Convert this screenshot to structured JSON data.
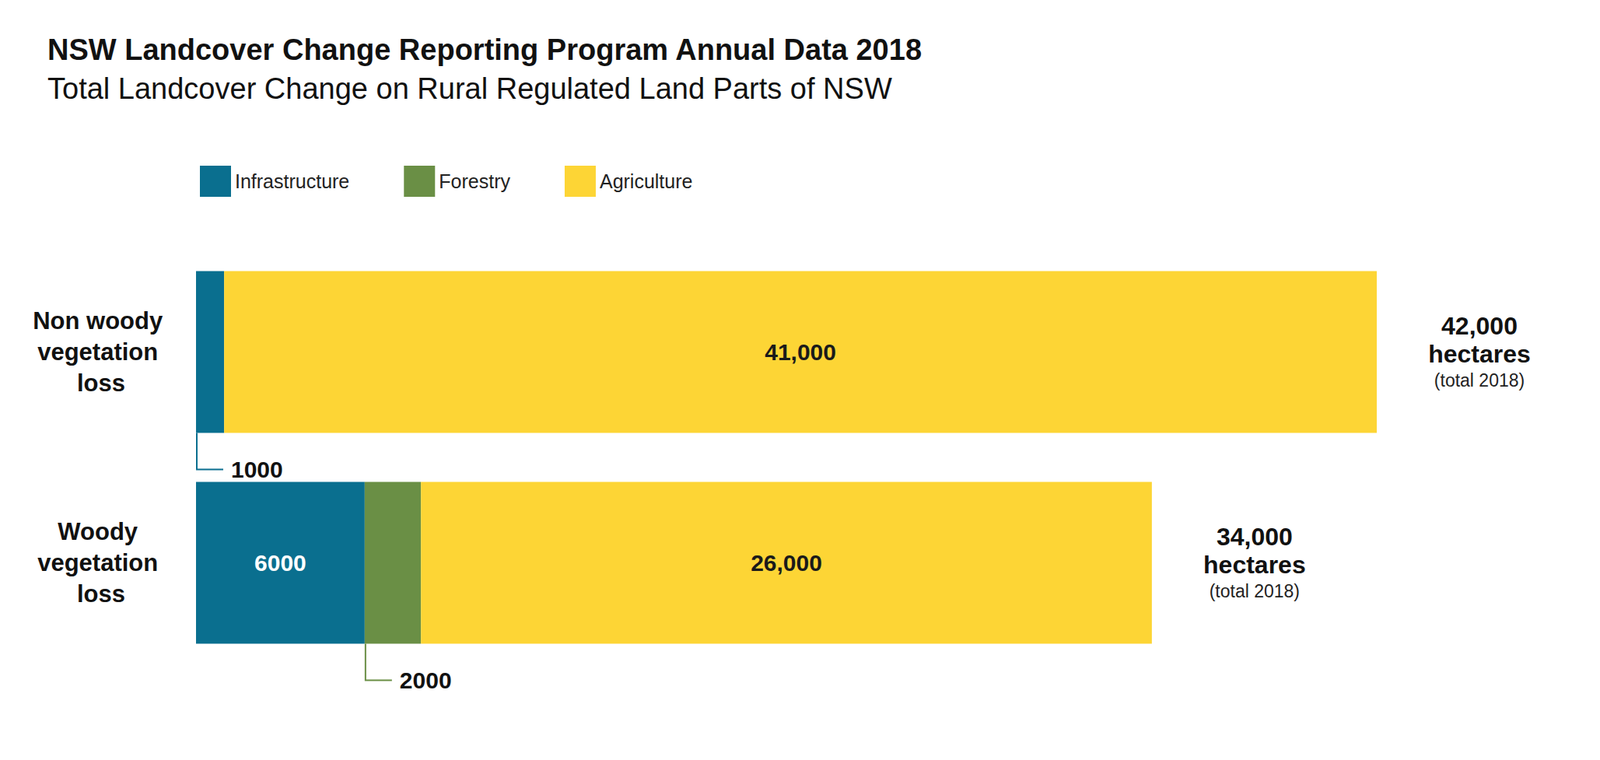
{
  "chart_data": {
    "type": "bar",
    "title": "NSW Landcover Change Reporting Program Annual Data 2018",
    "subtitle": "Total Landcover Change on Rural Regulated Land Parts of NSW",
    "orientation": "horizontal",
    "stacked": true,
    "data_labels": true,
    "tick_labels": false,
    "grid": false,
    "legend": "top-left",
    "categories": [
      "Non woody vegetation loss",
      "Woody vegetation loss"
    ],
    "series": [
      {
        "name": "Infrastructure",
        "color": "#0a6f8f",
        "values": [
          1000,
          6000
        ]
      },
      {
        "name": "Forestry",
        "color": "#6a8f45",
        "values": [
          null,
          2000
        ]
      },
      {
        "name": "Agriculture",
        "color": "#fdd535",
        "values": [
          41000,
          26000
        ],
        "value_labels": [
          "41,000",
          "26,000"
        ]
      }
    ],
    "xlim": [
      0,
      42000
    ],
    "totals": [
      42000,
      34000
    ],
    "total_labels": [
      "42,000",
      "34,000"
    ],
    "total_unit": "hectares",
    "total_note": "(total 2018)"
  }
}
